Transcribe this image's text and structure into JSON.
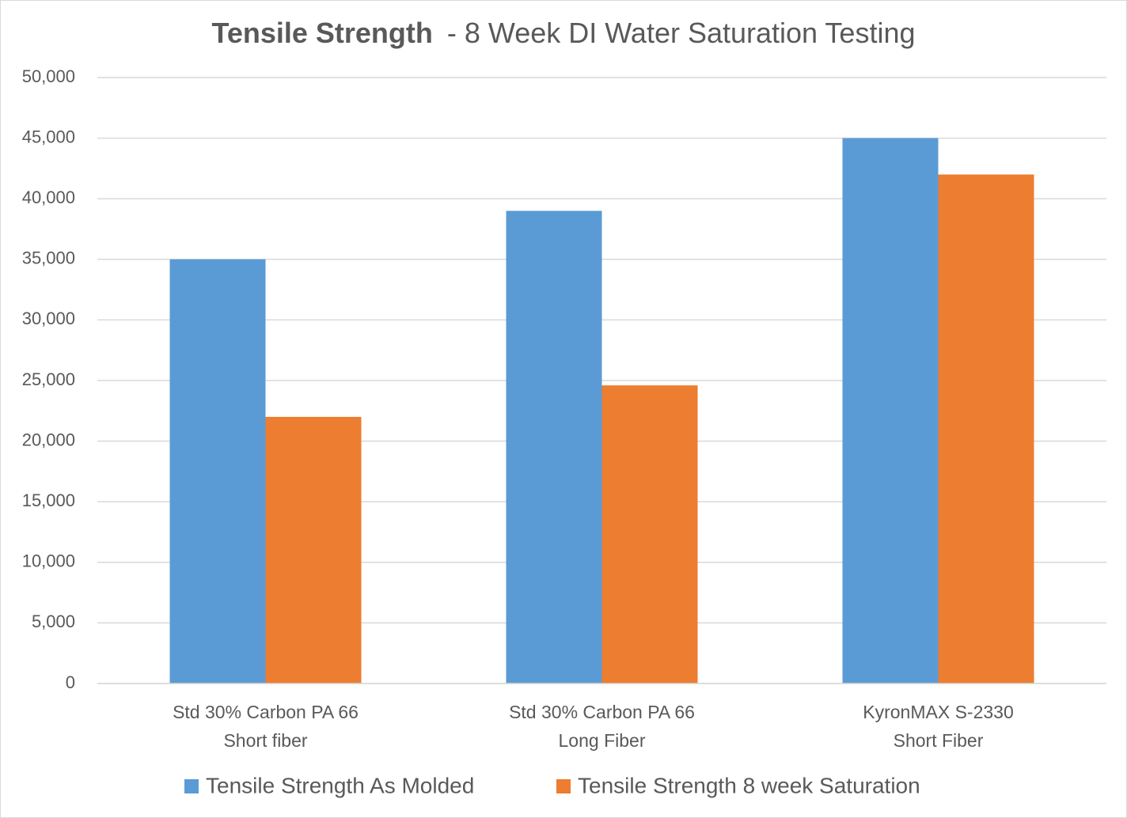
{
  "chart_data": {
    "type": "bar",
    "title": "Tensile Strength",
    "subtitle": "- 8 Week DI Water Saturation Testing",
    "categories": [
      [
        "Std 30% Carbon PA 66",
        "Short fiber"
      ],
      [
        "Std 30% Carbon PA 66",
        "Long Fiber"
      ],
      [
        "KyronMAX S-2330",
        "Short Fiber"
      ]
    ],
    "series": [
      {
        "name": "Tensile Strength As Molded",
        "color": "#5b9bd5",
        "values": [
          35000,
          39000,
          45000
        ]
      },
      {
        "name": "Tensile Strength 8 week Saturation",
        "color": "#ed7d31",
        "values": [
          22000,
          24600,
          42000
        ]
      }
    ],
    "ylim": [
      0,
      50000
    ],
    "yticks": [
      0,
      {
        "value": 5000,
        "label": "5,000"
      },
      {
        "value": 10000,
        "label": "10,000"
      },
      {
        "value": 15000,
        "label": "15,000"
      },
      {
        "value": 20000,
        "label": "20,000"
      },
      {
        "value": 25000,
        "label": "25,000"
      },
      {
        "value": 30000,
        "label": "30,000"
      },
      {
        "value": 35000,
        "label": "35,000"
      },
      {
        "value": 40000,
        "label": "40,000"
      },
      {
        "value": 45000,
        "label": "45,000"
      },
      {
        "value": 50000,
        "label": "50,000"
      }
    ],
    "grid": true,
    "legend": "bottom"
  }
}
